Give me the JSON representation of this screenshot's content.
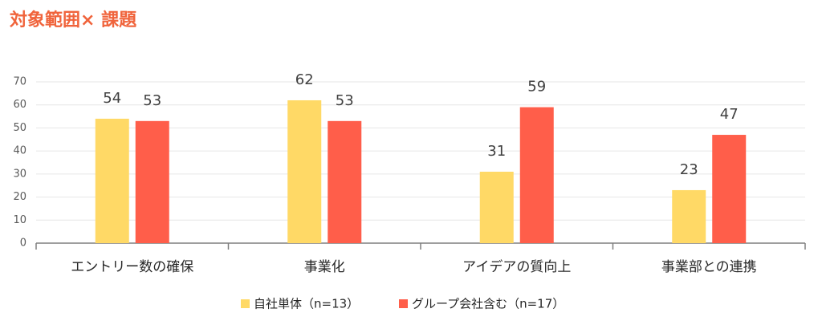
{
  "chart_data": {
    "type": "bar",
    "title": "対象範囲× 課題",
    "categories": [
      "エントリー数の確保",
      "事業化",
      "アイデアの質向上",
      "事業部との連携"
    ],
    "series": [
      {
        "name": "自社単体（n=13）",
        "color": "#FFD966",
        "values": [
          54,
          62,
          31,
          23
        ]
      },
      {
        "name": "グループ会社含む（n=17）",
        "color": "#FF5E4A",
        "values": [
          53,
          53,
          59,
          47
        ]
      }
    ],
    "ylim": [
      0,
      70
    ],
    "yticks": [
      0,
      10,
      20,
      30,
      40,
      50,
      60,
      70
    ],
    "grid": true,
    "legend": "bottom"
  }
}
